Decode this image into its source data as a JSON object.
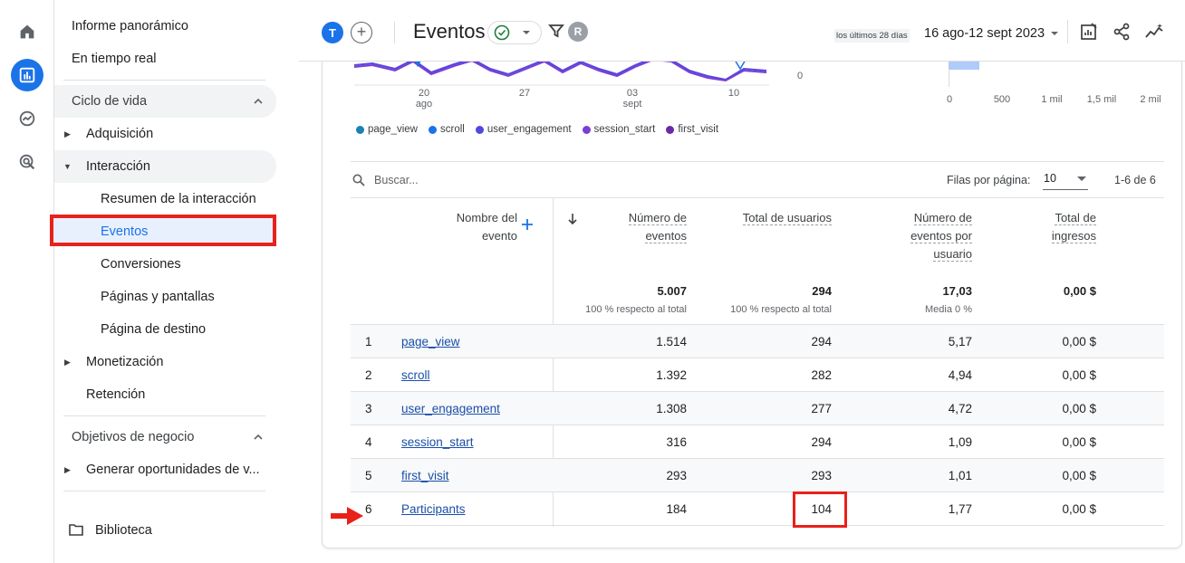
{
  "colors": {
    "accent": "#1a73e8",
    "highlight_red": "#e8211a",
    "link": "#1a4fa8",
    "series": [
      "#1c7fb5",
      "#1a73e8",
      "#5247e0",
      "#7b3fd4",
      "#6b2aa8"
    ]
  },
  "rail": {
    "icons": [
      "home-icon",
      "reports-icon",
      "explore-icon",
      "advertising-icon"
    ],
    "active": "reports-icon"
  },
  "sidebar": {
    "top_items": [
      "Informe panorámico",
      "En tiempo real"
    ],
    "section1_title": "Ciclo de vida",
    "lifecycle": [
      {
        "label": "Adquisición",
        "expanded": false
      },
      {
        "label": "Interacción",
        "expanded": true
      },
      {
        "label": "Monetización",
        "expanded": false
      },
      {
        "label": "Retención"
      }
    ],
    "interaccion_children": [
      "Resumen de la interacción",
      "Eventos",
      "Conversiones",
      "Páginas y pantallas",
      "Página de destino"
    ],
    "active_child": "Eventos",
    "section2_title": "Objetivos de negocio",
    "business": [
      {
        "label": "Generar oportunidades de v...",
        "expanded": false
      }
    ],
    "library_label": "Biblioteca"
  },
  "header": {
    "avatar_t": "T",
    "add_label": "+",
    "title": "Eventos",
    "avatar_r": "R",
    "date_prefix": "los últimos 28 días",
    "date_range": "16 ago-12 sept 2023"
  },
  "chart": {
    "x_ticks": [
      {
        "day": "20",
        "month": "ago"
      },
      {
        "day": "27",
        "month": ""
      },
      {
        "day": "03",
        "month": "sept"
      },
      {
        "day": "10",
        "month": ""
      }
    ],
    "y_zero_label": "0",
    "bar_axis_ticks": [
      "0",
      "500",
      "1 mil",
      "1,5 mil",
      "2 mil"
    ],
    "legend": [
      "page_view",
      "scroll",
      "user_engagement",
      "session_start",
      "first_visit"
    ]
  },
  "table": {
    "search_placeholder": "Buscar...",
    "rows_per_page_label": "Filas por página:",
    "rows_per_page_value": "10",
    "range_label": "1-6 de 6",
    "dimension_header_line1": "Nombre del",
    "dimension_header_line2": "evento",
    "headers": [
      {
        "line1": "Número de",
        "line2": "eventos"
      },
      {
        "line1": "Total de usuarios",
        "line2": ""
      },
      {
        "line1": "Número de",
        "line2": "eventos por",
        "line3": "usuario"
      },
      {
        "line1": "Total de",
        "line2": "ingresos"
      }
    ],
    "totals": [
      {
        "value": "5.007",
        "sub": "100 % respecto al total"
      },
      {
        "value": "294",
        "sub": "100 % respecto al total"
      },
      {
        "value": "17,03",
        "sub": "Media 0 %"
      },
      {
        "value": "0,00 $",
        "sub": ""
      }
    ],
    "rows": [
      {
        "idx": "1",
        "name": "page_view",
        "events": "1.514",
        "users": "294",
        "per_user": "5,17",
        "revenue": "0,00 $"
      },
      {
        "idx": "2",
        "name": "scroll",
        "events": "1.392",
        "users": "282",
        "per_user": "4,94",
        "revenue": "0,00 $"
      },
      {
        "idx": "3",
        "name": "user_engagement",
        "events": "1.308",
        "users": "277",
        "per_user": "4,72",
        "revenue": "0,00 $"
      },
      {
        "idx": "4",
        "name": "session_start",
        "events": "316",
        "users": "294",
        "per_user": "1,09",
        "revenue": "0,00 $"
      },
      {
        "idx": "5",
        "name": "first_visit",
        "events": "293",
        "users": "293",
        "per_user": "1,01",
        "revenue": "0,00 $"
      },
      {
        "idx": "6",
        "name": "Participants",
        "events": "184",
        "users": "104",
        "per_user": "1,77",
        "revenue": "0,00 $"
      }
    ]
  }
}
